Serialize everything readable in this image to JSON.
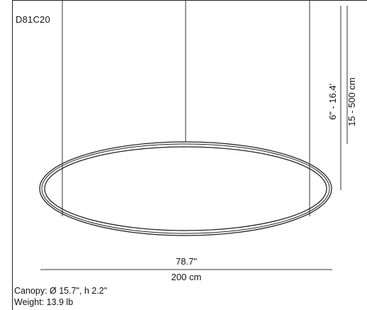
{
  "product": {
    "code": "D81C20"
  },
  "dimensions": {
    "width_in": "78.7\"",
    "width_cm": "200 cm",
    "height_in": "6\" - 16.4'",
    "height_cm": "15 - 500 cm"
  },
  "specs": {
    "canopy": "Canopy: Ø 15.7\", h 2.2\"",
    "weight": "Weight: 13.9 lb"
  }
}
